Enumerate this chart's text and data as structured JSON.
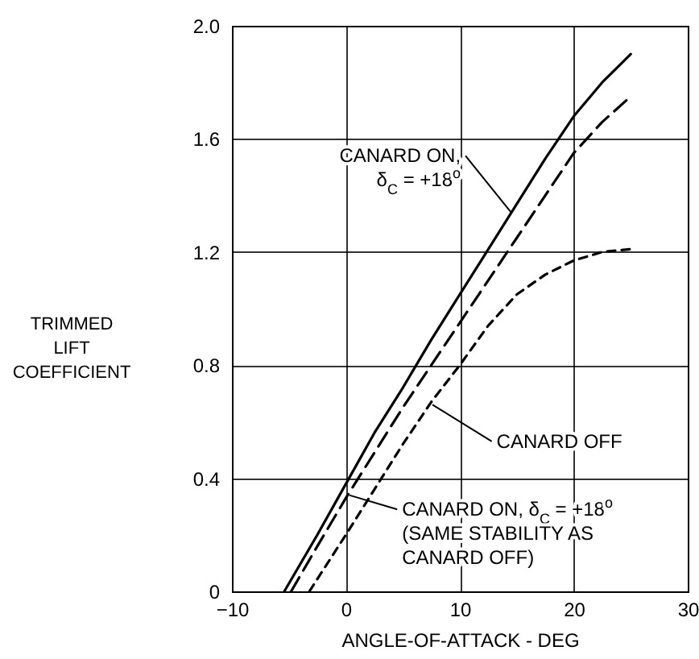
{
  "chart_data": {
    "type": "line",
    "xlabel": "ANGLE-OF-ATTACK - DEG",
    "ylabel": "TRIMMED\nLIFT\nCOEFFICIENT",
    "series": [
      {
        "color": "#000000",
        "line_style": "solid",
        "x": [
          -5.4,
          -2.5,
          0,
          2.5,
          5,
          7.5,
          10,
          12.5,
          15,
          17.5,
          20,
          22.5,
          25
        ],
        "values": [
          0,
          0.2,
          0.38,
          0.56,
          0.72,
          0.89,
          1.05,
          1.21,
          1.37,
          1.53,
          1.68,
          1.8,
          1.9
        ]
      },
      {
        "color": "#000000",
        "line_style": "dashed",
        "x": [
          -4.8,
          -2.5,
          0,
          2.5,
          5,
          7.5,
          10,
          12.5,
          15,
          17.5,
          20,
          22.5,
          25
        ],
        "values": [
          0,
          0.16,
          0.33,
          0.49,
          0.65,
          0.8,
          0.95,
          1.1,
          1.25,
          1.4,
          1.55,
          1.66,
          1.75
        ]
      },
      {
        "color": "#000000",
        "line_style": "dotted",
        "x": [
          -3.2,
          0,
          2.5,
          5,
          7.5,
          10,
          12.5,
          15,
          17.5,
          20,
          22.5,
          25
        ],
        "values": [
          0,
          0.2,
          0.36,
          0.52,
          0.67,
          0.8,
          0.94,
          1.05,
          1.12,
          1.17,
          1.2,
          1.21
        ]
      }
    ],
    "annotations": [
      {
        "text": "CANARD ON,\nδ$_{C}$ = +18$^{o}$",
        "x": 14.5,
        "y": 1.34
      },
      {
        "text": "CANARD OFF",
        "x": 7.6,
        "y": 0.66
      },
      {
        "text": "CANARD ON, δ$_{C}$ = +18$^{o}$\n(SAME STABILITY AS\nCANARD OFF)",
        "x": 0.3,
        "y": 0.34
      }
    ],
    "xlim": [
      -10,
      30
    ],
    "xticks": [
      -10,
      0,
      10,
      20,
      30
    ],
    "ylim": [
      0,
      2.0
    ],
    "yticks": [
      {
        "value": 0,
        "label": "0"
      },
      0.4,
      0.8,
      1.2,
      1.6,
      {
        "value": 2.0,
        "label": "2.0"
      }
    ],
    "grid": true
  }
}
